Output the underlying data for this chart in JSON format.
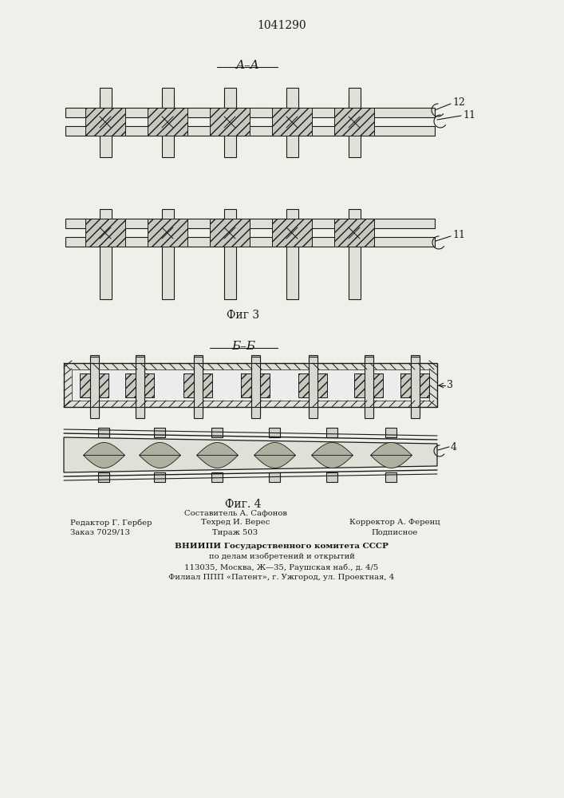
{
  "patent_number": "1041290",
  "background_color": "#f0f0eb",
  "fig3_label": "Фиг 3",
  "fig4_label": "Фиг. 4",
  "section_aa": "A–A",
  "section_bb": "Б–Б",
  "label_11": "11",
  "label_12": "12",
  "label_3": "3",
  "label_4": "4",
  "footer_line1": "Редактор Г. Гербер",
  "footer_line2": "Заказ 7029/13",
  "footer_col2_line1": "Составитель А. Сафонов",
  "footer_col2_line2": "Техред И. Верес",
  "footer_col2_line3": "Тираж 503",
  "footer_col3_line1": "Корректор А. Ференц",
  "footer_col3_line2": "Подписное",
  "footer_vnipi1": "ВНИИПИ Государственного комитета СССР",
  "footer_vnipi2": "по делам изобретений и открытий",
  "footer_vnipi3": "113035, Москва, Ж—35, Раушская наб., д. 4/5",
  "footer_vnipi4": "Филиал ППП «Патент», г. Ужгород, ул. Проектная, 4"
}
